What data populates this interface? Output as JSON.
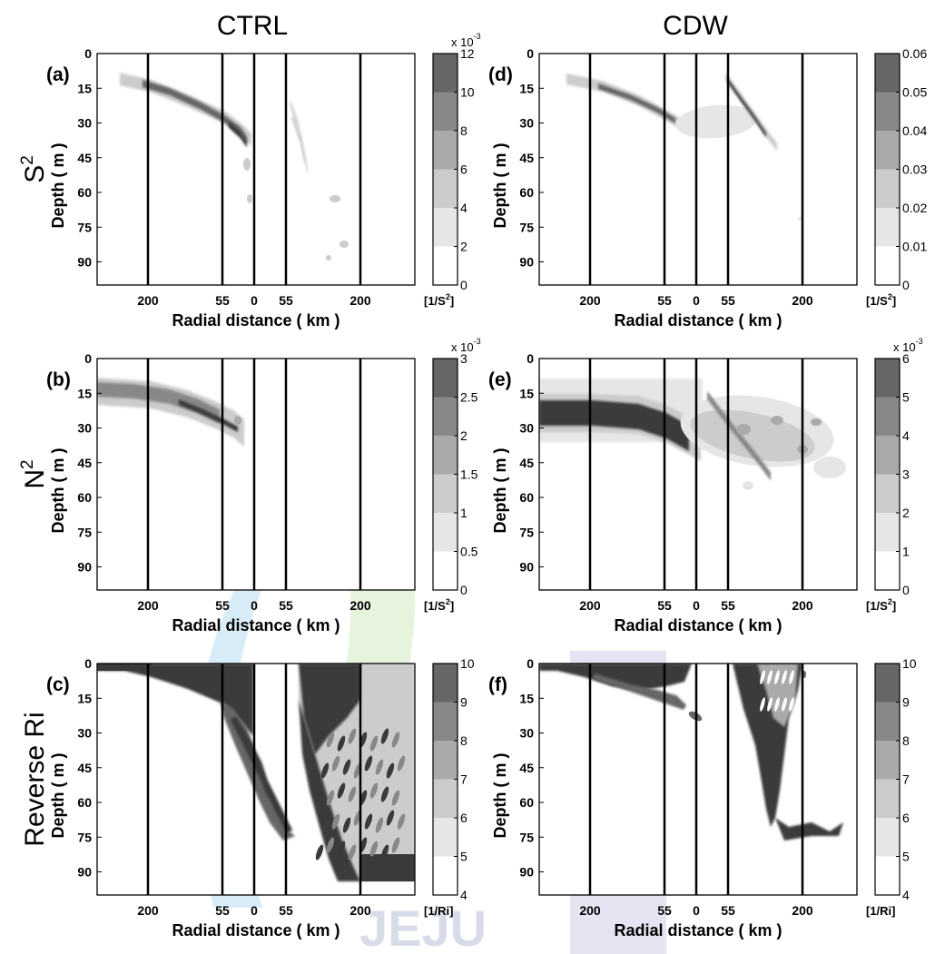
{
  "chart_data": {
    "type": "heatmap",
    "columns": [
      "CTRL",
      "CDW"
    ],
    "rows": [
      "S2",
      "N2",
      "Reverse Ri"
    ],
    "watermark": "JEJU",
    "panels": [
      {
        "id": "a",
        "label": "(a)",
        "column": "CTRL",
        "row_label": "S",
        "row_label_sup": "2",
        "xlabel": "Radial distance ( km )",
        "ylabel": "Depth ( m )",
        "xticks": [
          "200",
          "55",
          "0",
          "55",
          "200"
        ],
        "yticks": [
          "0",
          "15",
          "30",
          "45",
          "60",
          "75",
          "90"
        ],
        "ylim": [
          0,
          100
        ],
        "vertical_lines_km": [
          -200,
          -55,
          0,
          55,
          200
        ],
        "colorbar": {
          "ticks": [
            "0",
            "2",
            "4",
            "6",
            "8",
            "10",
            "12"
          ],
          "exponent_text": "x 10",
          "exponent_sup": "-3",
          "unit_text": "[1/S",
          "unit_sup": "2",
          "unit_close": "]"
        },
        "features": [
          {
            "desc": "inner shear band",
            "x_km": [
              -290,
              -60
            ],
            "depth_m": [
              12,
              38
            ],
            "level": 5
          },
          {
            "desc": "outer shear band",
            "x_km": [
              80,
              120
            ],
            "depth_m": [
              20,
              50
            ],
            "level": 3
          }
        ]
      },
      {
        "id": "d",
        "label": "(d)",
        "column": "CDW",
        "row_label": "",
        "xlabel": "Radial distance ( km )",
        "ylabel": "Depth ( m )",
        "xticks": [
          "200",
          "55",
          "0",
          "55",
          "200"
        ],
        "yticks": [
          "0",
          "15",
          "30",
          "45",
          "60",
          "75",
          "90"
        ],
        "ylim": [
          0,
          100
        ],
        "vertical_lines_km": [
          -200,
          -55,
          0,
          55,
          200
        ],
        "colorbar": {
          "ticks": [
            "0",
            "0.01",
            "0.02",
            "0.03",
            "0.04",
            "0.05",
            "0.06"
          ],
          "exponent_text": "",
          "exponent_sup": "",
          "unit_text": "[1/S",
          "unit_sup": "2",
          "unit_close": "]"
        },
        "features": [
          {
            "desc": "inner shear band",
            "x_km": [
              -290,
              -30
            ],
            "depth_m": [
              12,
              35
            ],
            "level": 5
          },
          {
            "desc": "outer shear band",
            "x_km": [
              100,
              160
            ],
            "depth_m": [
              15,
              40
            ],
            "level": 6
          }
        ]
      },
      {
        "id": "b",
        "label": "(b)",
        "column": "CTRL",
        "row_label": "N",
        "row_label_sup": "2",
        "xlabel": "Radial distance ( km )",
        "ylabel": "Depth ( m )",
        "xticks": [
          "200",
          "55",
          "0",
          "55",
          "200"
        ],
        "yticks": [
          "0",
          "15",
          "30",
          "45",
          "60",
          "75",
          "90"
        ],
        "ylim": [
          0,
          100
        ],
        "vertical_lines_km": [
          -200,
          -55,
          0,
          55,
          200
        ],
        "colorbar": {
          "ticks": [
            "0",
            "0.5",
            "1",
            "1.5",
            "2",
            "2.5",
            "3"
          ],
          "exponent_text": "x 10",
          "exponent_sup": "-3",
          "unit_text": "[1/S",
          "unit_sup": "2",
          "unit_close": "]"
        },
        "features": [
          {
            "desc": "thermocline band",
            "x_km": [
              -340,
              -10
            ],
            "depth_m": [
              15,
              38
            ],
            "level": 5
          }
        ]
      },
      {
        "id": "e",
        "label": "(e)",
        "column": "CDW",
        "row_label": "",
        "xlabel": "Radial distance ( km )",
        "ylabel": "Depth ( m )",
        "xticks": [
          "200",
          "55",
          "0",
          "55",
          "200"
        ],
        "yticks": [
          "0",
          "15",
          "30",
          "45",
          "60",
          "75",
          "90"
        ],
        "ylim": [
          0,
          100
        ],
        "vertical_lines_km": [
          -200,
          -55,
          0,
          55,
          200
        ],
        "colorbar": {
          "ticks": [
            "0",
            "1",
            "2",
            "3",
            "4",
            "5",
            "6"
          ],
          "exponent_text": "x 10",
          "exponent_sup": "-3",
          "unit_text": "[1/S",
          "unit_sup": "2",
          "unit_close": "]"
        },
        "features": [
          {
            "desc": "thermocline band",
            "x_km": [
              -340,
              0
            ],
            "depth_m": [
              15,
              33
            ],
            "level": 6
          },
          {
            "desc": "outer dispersed stratification",
            "x_km": [
              0,
              350
            ],
            "depth_m": [
              5,
              60
            ],
            "level": 2
          }
        ]
      },
      {
        "id": "c",
        "label": "(c)",
        "column": "CTRL",
        "row_label": "Reverse Ri",
        "xlabel": "Radial distance ( km )",
        "ylabel": "Depth ( m )",
        "xticks": [
          "200",
          "55",
          "0",
          "55",
          "200"
        ],
        "yticks": [
          "0",
          "15",
          "30",
          "45",
          "60",
          "75",
          "90"
        ],
        "ylim": [
          0,
          100
        ],
        "vertical_lines_km": [
          -200,
          -55,
          0,
          55,
          200
        ],
        "colorbar": {
          "ticks": [
            "4",
            "5",
            "6",
            "7",
            "8",
            "9",
            "10"
          ],
          "exponent_text": "",
          "exponent_sup": "",
          "unit_text": "[1/Ri]",
          "unit_sup": "",
          "unit_close": ""
        },
        "features": [
          {
            "desc": "surface mixed layer wedge",
            "x_km": [
              -340,
              30
            ],
            "depth_m": [
              0,
              80
            ],
            "level": 6
          },
          {
            "desc": "outer deep mixing wedge",
            "x_km": [
              40,
              350
            ],
            "depth_m": [
              0,
              95
            ],
            "level": 6
          }
        ]
      },
      {
        "id": "f",
        "label": "(f)",
        "column": "CDW",
        "row_label": "",
        "xlabel": "Radial distance ( km )",
        "ylabel": "Depth ( m )",
        "xticks": [
          "200",
          "55",
          "0",
          "55",
          "200"
        ],
        "yticks": [
          "0",
          "15",
          "30",
          "45",
          "60",
          "75",
          "90"
        ],
        "ylim": [
          0,
          100
        ],
        "vertical_lines_km": [
          -200,
          -55,
          0,
          55,
          200
        ],
        "colorbar": {
          "ticks": [
            "4",
            "5",
            "6",
            "7",
            "8",
            "9",
            "10"
          ],
          "exponent_text": "",
          "exponent_sup": "",
          "unit_text": "[1/Ri]",
          "unit_sup": "",
          "unit_close": ""
        },
        "features": [
          {
            "desc": "surface mixed layer",
            "x_km": [
              -340,
              -10
            ],
            "depth_m": [
              0,
              35
            ],
            "level": 6
          },
          {
            "desc": "outer mixing wedge",
            "x_km": [
              90,
              200
            ],
            "depth_m": [
              0,
              75
            ],
            "level": 6
          }
        ]
      }
    ],
    "colorbar_levels": 6,
    "colors": {
      "level_0": "#ffffff",
      "level_1": "#e6e6e6",
      "level_2": "#cccccc",
      "level_3": "#aaaaaa",
      "level_4": "#888888",
      "level_5": "#666666",
      "level_6": "#3a3a3a",
      "line": "#000000"
    }
  }
}
